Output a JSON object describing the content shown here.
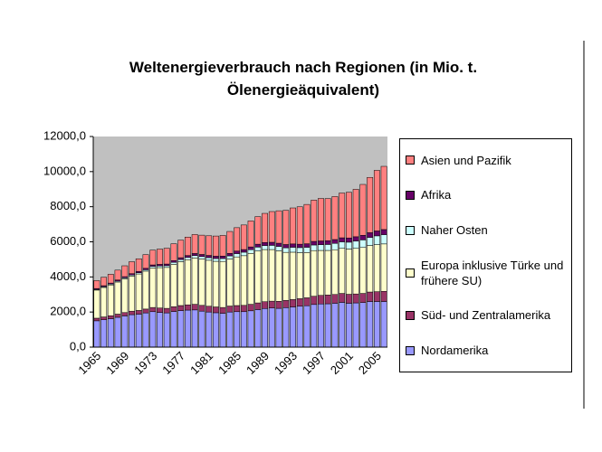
{
  "chart_data": {
    "type": "bar",
    "stacked": true,
    "title": "Weltenergieverbrauch nach Regionen (in Mio. t. Ölenergieäquivalent)",
    "categories": [
      "1965",
      null,
      null,
      null,
      "1969",
      null,
      null,
      null,
      "1973",
      null,
      null,
      null,
      "1977",
      null,
      null,
      null,
      "1981",
      null,
      null,
      null,
      "1985",
      null,
      null,
      null,
      "1989",
      null,
      null,
      null,
      "1993",
      null,
      null,
      null,
      "1997",
      null,
      null,
      null,
      "2001",
      null,
      null,
      null,
      "2005",
      null
    ],
    "series": [
      {
        "name": "Nordamerika",
        "color": "#9999ff",
        "values": [
          1500,
          1560,
          1620,
          1700,
          1780,
          1850,
          1880,
          1950,
          2020,
          1980,
          1950,
          2030,
          2080,
          2110,
          2120,
          2050,
          2000,
          1960,
          1930,
          2000,
          2020,
          2020,
          2070,
          2140,
          2200,
          2230,
          2210,
          2250,
          2290,
          2330,
          2360,
          2430,
          2460,
          2470,
          2500,
          2550,
          2500,
          2520,
          2540,
          2600,
          2600,
          2600
        ]
      },
      {
        "name": "Süd- und Zentralamerika",
        "color": "#993366",
        "values": [
          150,
          160,
          170,
          180,
          190,
          200,
          210,
          220,
          240,
          250,
          260,
          270,
          290,
          300,
          320,
          330,
          330,
          330,
          330,
          340,
          350,
          360,
          370,
          380,
          390,
          390,
          400,
          410,
          420,
          430,
          450,
          470,
          490,
          500,
          500,
          510,
          510,
          510,
          520,
          540,
          560,
          580
        ]
      },
      {
        "name": "Europa inklusive Türke und frühere SU)",
        "color": "#ffffcc",
        "values": [
          1600,
          1680,
          1750,
          1830,
          1920,
          2000,
          2080,
          2160,
          2250,
          2300,
          2330,
          2420,
          2500,
          2570,
          2640,
          2640,
          2620,
          2600,
          2620,
          2680,
          2770,
          2830,
          2900,
          2960,
          2970,
          2940,
          2880,
          2740,
          2700,
          2620,
          2580,
          2600,
          2560,
          2540,
          2550,
          2570,
          2580,
          2600,
          2620,
          2650,
          2680,
          2700
        ]
      },
      {
        "name": "Naher Osten",
        "color": "#ccffff",
        "values": [
          40,
          45,
          50,
          55,
          60,
          65,
          70,
          80,
          90,
          95,
          100,
          110,
          120,
          130,
          140,
          140,
          150,
          160,
          170,
          180,
          190,
          200,
          210,
          220,
          230,
          240,
          250,
          260,
          280,
          290,
          300,
          320,
          330,
          340,
          360,
          370,
          390,
          410,
          430,
          460,
          500,
          530
        ]
      },
      {
        "name": "Afrika",
        "color": "#660066",
        "values": [
          50,
          55,
          60,
          62,
          65,
          70,
          75,
          80,
          85,
          90,
          95,
          100,
          105,
          110,
          115,
          120,
          125,
          130,
          135,
          140,
          145,
          150,
          160,
          165,
          170,
          175,
          180,
          185,
          190,
          195,
          200,
          205,
          210,
          215,
          220,
          230,
          240,
          250,
          260,
          270,
          280,
          290
        ]
      },
      {
        "name": "Asien und Pazifik",
        "color": "#ff8080",
        "values": [
          450,
          480,
          500,
          560,
          620,
          680,
          720,
          780,
          840,
          870,
          900,
          960,
          1000,
          1050,
          1080,
          1100,
          1120,
          1150,
          1180,
          1250,
          1330,
          1400,
          1480,
          1570,
          1660,
          1750,
          1850,
          1950,
          2050,
          2130,
          2240,
          2350,
          2420,
          2400,
          2450,
          2550,
          2600,
          2700,
          2900,
          3150,
          3450,
          3600
        ]
      }
    ],
    "ylim": [
      0,
      12000
    ],
    "yticks": [
      {
        "value": 0,
        "label": "0,0"
      },
      {
        "value": 2000,
        "label": "2000,0"
      },
      {
        "value": 4000,
        "label": "4000,0"
      },
      {
        "value": 6000,
        "label": "6000,0"
      },
      {
        "value": 8000,
        "label": "8000,0"
      },
      {
        "value": 10000,
        "label": "10000,0"
      },
      {
        "value": 12000,
        "label": "12000,0"
      }
    ],
    "plot_background": "#c0c0c0"
  }
}
